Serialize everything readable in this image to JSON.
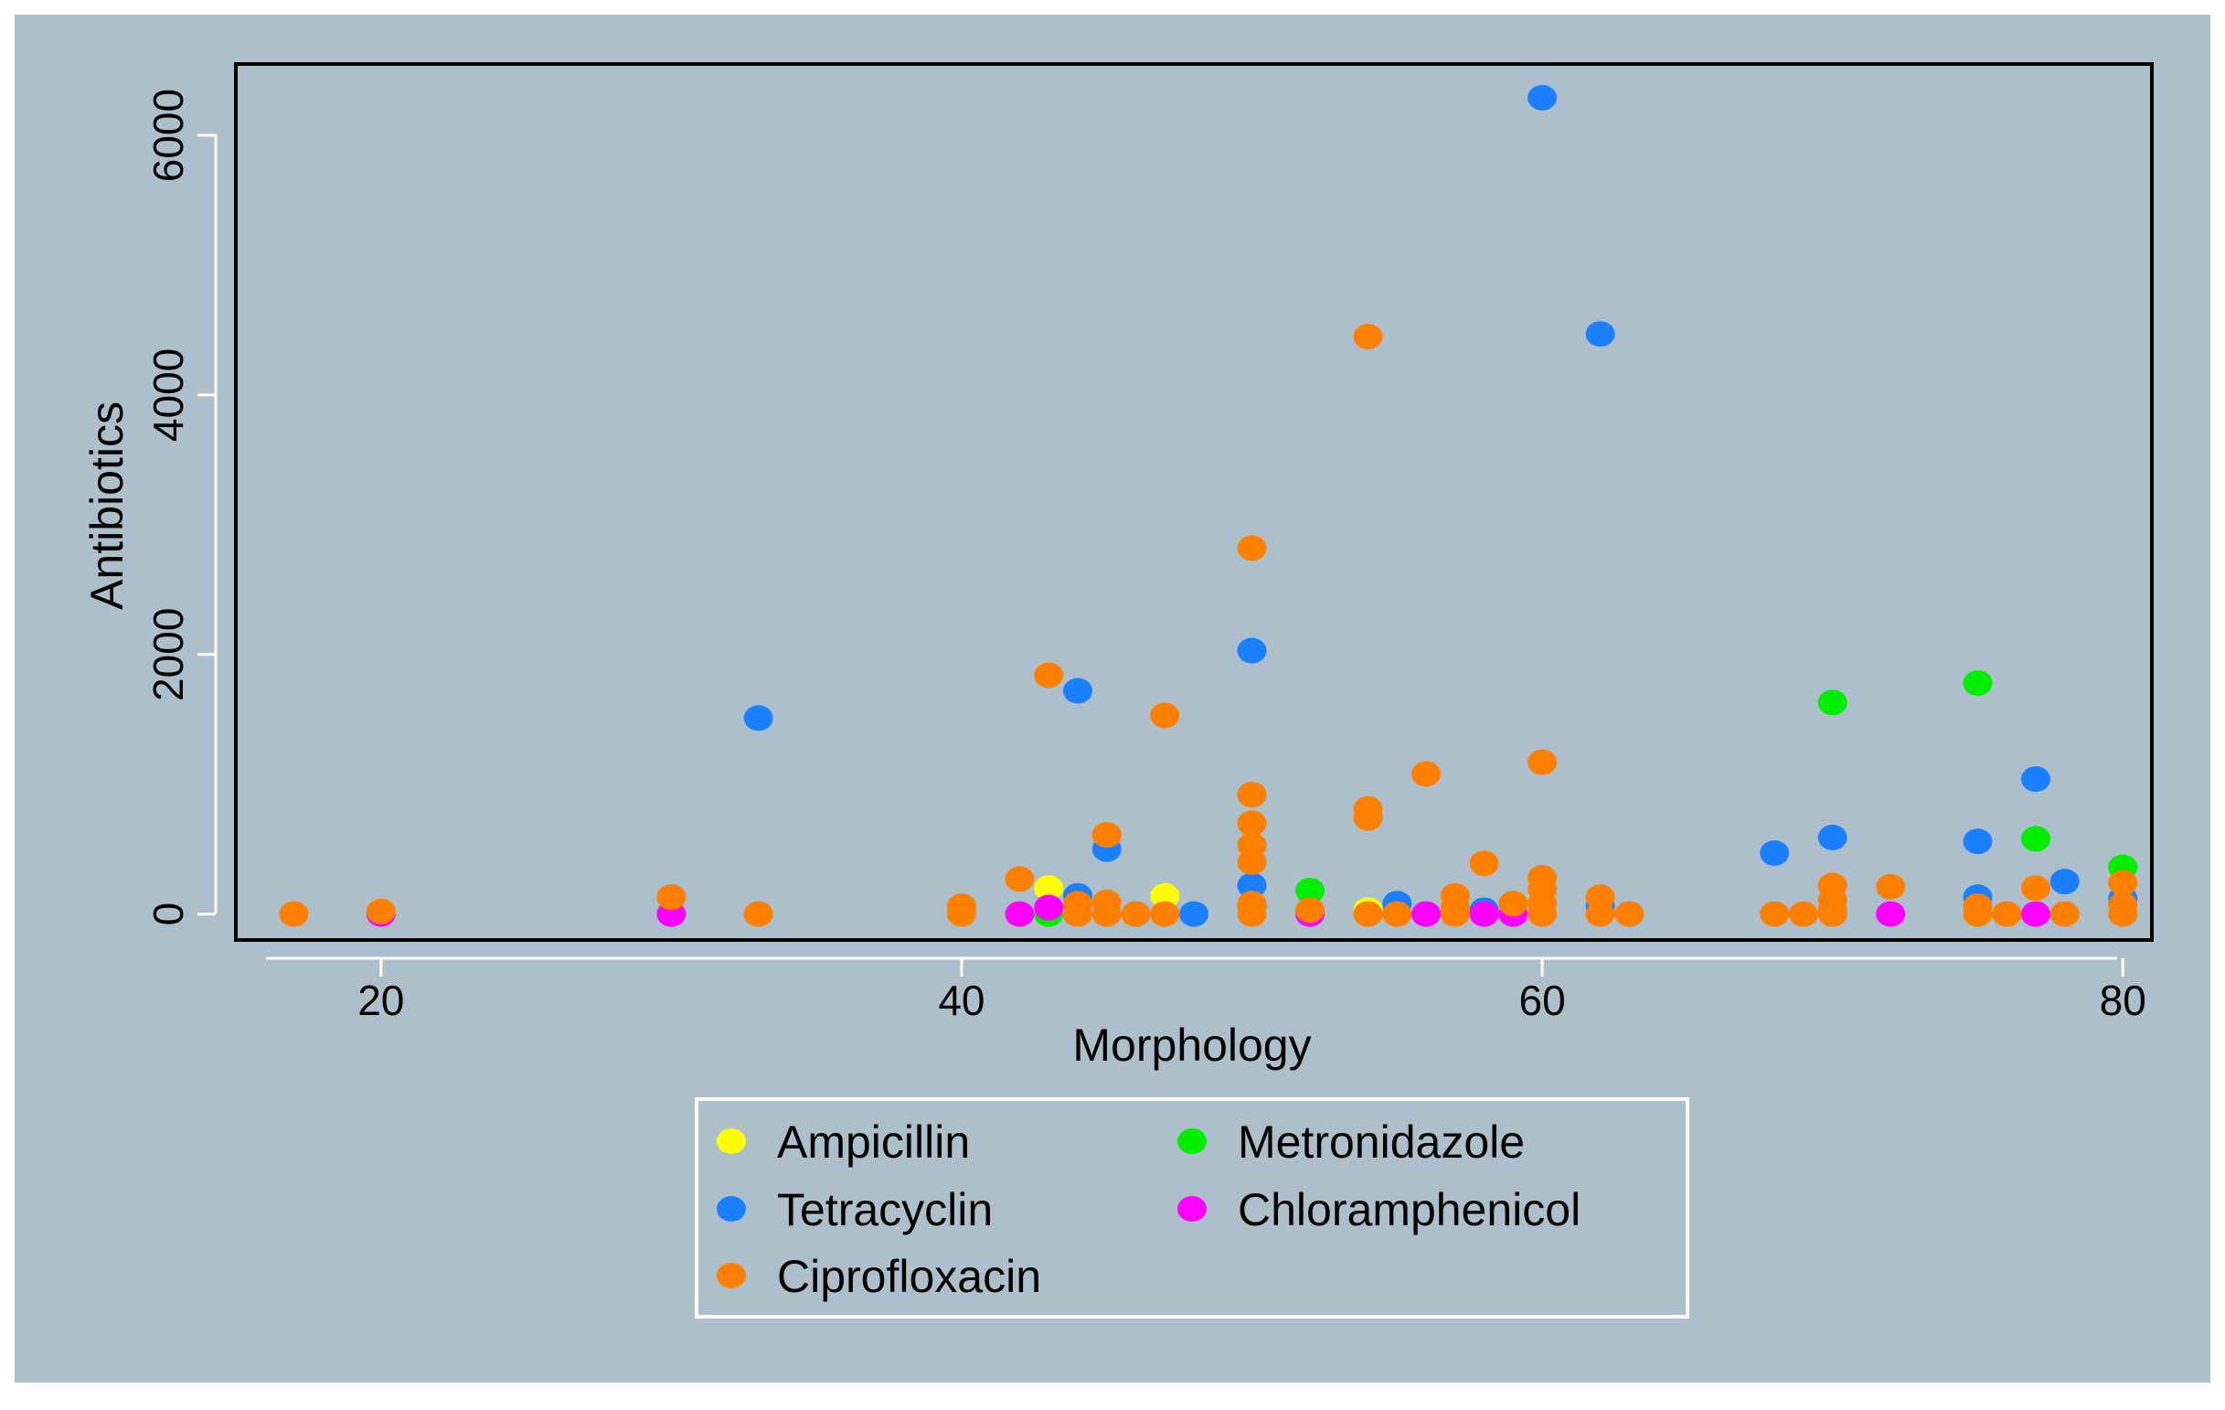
{
  "chart_data": {
    "type": "scatter",
    "title": "",
    "xlabel": "Morphology",
    "ylabel": "Antibiotics",
    "xlim": [
      15,
      81
    ],
    "ylim": [
      -200,
      6550
    ],
    "xticks": [
      20,
      40,
      60,
      80
    ],
    "yticks": [
      0,
      2000,
      4000,
      6000
    ],
    "xtick_labels": [
      "20",
      "40",
      "60",
      "80"
    ],
    "ytick_labels": [
      "0",
      "2000",
      "4000",
      "6000"
    ],
    "grid": false,
    "legend_position": "bottom",
    "colors": {
      "figure_background": "#aebfcc",
      "plot_background": "#aebfcc",
      "axis_line": "#000000",
      "legend_border": "#ffffff"
    },
    "series": [
      {
        "name": "Ampicillin",
        "color": "#ffff00",
        "points": [
          [
            43,
            200
          ],
          [
            47,
            140
          ],
          [
            54,
            30
          ],
          [
            42,
            0
          ],
          [
            43,
            0
          ],
          [
            47,
            0
          ]
        ]
      },
      {
        "name": "Metronidazole",
        "color": "#00ee00",
        "points": [
          [
            70,
            1630
          ],
          [
            75,
            1780
          ],
          [
            77,
            580
          ],
          [
            80,
            360
          ],
          [
            52,
            180
          ],
          [
            43,
            0
          ],
          [
            50,
            60
          ],
          [
            54,
            0
          ]
        ]
      },
      {
        "name": "Tetracyclin",
        "color": "#1a80ff",
        "points": [
          [
            60,
            6290
          ],
          [
            62,
            4470
          ],
          [
            33,
            1510
          ],
          [
            44,
            1720
          ],
          [
            50,
            2030
          ],
          [
            45,
            500
          ],
          [
            44,
            140
          ],
          [
            50,
            220
          ],
          [
            55,
            80
          ],
          [
            56,
            0
          ],
          [
            62,
            60
          ],
          [
            63,
            0
          ],
          [
            68,
            470
          ],
          [
            70,
            590
          ],
          [
            75,
            560
          ],
          [
            75,
            130
          ],
          [
            77,
            1040
          ],
          [
            78,
            250
          ],
          [
            80,
            120
          ],
          [
            46,
            0
          ],
          [
            58,
            30
          ],
          [
            48,
            0
          ]
        ]
      },
      {
        "name": "Chloramphenicol",
        "color": "#ff00ff",
        "points": [
          [
            20,
            0
          ],
          [
            30,
            0
          ],
          [
            42,
            0
          ],
          [
            43,
            50
          ],
          [
            52,
            0
          ],
          [
            56,
            0
          ],
          [
            58,
            0
          ],
          [
            59,
            0
          ],
          [
            72,
            0
          ],
          [
            77,
            0
          ]
        ]
      },
      {
        "name": "Ciprofloxacin",
        "color": "#ff8000",
        "points": [
          [
            17,
            0
          ],
          [
            20,
            20
          ],
          [
            30,
            130
          ],
          [
            33,
            0
          ],
          [
            40,
            60
          ],
          [
            40,
            0
          ],
          [
            42,
            270
          ],
          [
            43,
            1840
          ],
          [
            44,
            80
          ],
          [
            44,
            0
          ],
          [
            45,
            610
          ],
          [
            45,
            90
          ],
          [
            45,
            0
          ],
          [
            46,
            0
          ],
          [
            47,
            1530
          ],
          [
            47,
            0
          ],
          [
            50,
            2820
          ],
          [
            50,
            920
          ],
          [
            50,
            700
          ],
          [
            50,
            530
          ],
          [
            50,
            400
          ],
          [
            50,
            80
          ],
          [
            50,
            0
          ],
          [
            52,
            30
          ],
          [
            54,
            4450
          ],
          [
            54,
            810
          ],
          [
            54,
            740
          ],
          [
            54,
            0
          ],
          [
            55,
            0
          ],
          [
            56,
            1080
          ],
          [
            57,
            140
          ],
          [
            57,
            50
          ],
          [
            57,
            0
          ],
          [
            58,
            390
          ],
          [
            59,
            80
          ],
          [
            60,
            1170
          ],
          [
            60,
            280
          ],
          [
            60,
            190
          ],
          [
            60,
            80
          ],
          [
            60,
            0
          ],
          [
            62,
            130
          ],
          [
            62,
            0
          ],
          [
            63,
            0
          ],
          [
            68,
            0
          ],
          [
            69,
            0
          ],
          [
            70,
            220
          ],
          [
            70,
            110
          ],
          [
            70,
            30
          ],
          [
            70,
            0
          ],
          [
            72,
            210
          ],
          [
            75,
            60
          ],
          [
            75,
            0
          ],
          [
            76,
            0
          ],
          [
            77,
            200
          ],
          [
            78,
            0
          ],
          [
            80,
            240
          ],
          [
            80,
            70
          ],
          [
            80,
            0
          ]
        ]
      }
    ],
    "legend": {
      "entries": [
        {
          "label": "Ampicillin",
          "color": "#ffff00"
        },
        {
          "label": "Metronidazole",
          "color": "#00ee00"
        },
        {
          "label": "Tetracyclin",
          "color": "#1a80ff"
        },
        {
          "label": "Chloramphenicol",
          "color": "#ff00ff"
        },
        {
          "label": "Ciprofloxacin",
          "color": "#ff8000"
        }
      ]
    }
  }
}
